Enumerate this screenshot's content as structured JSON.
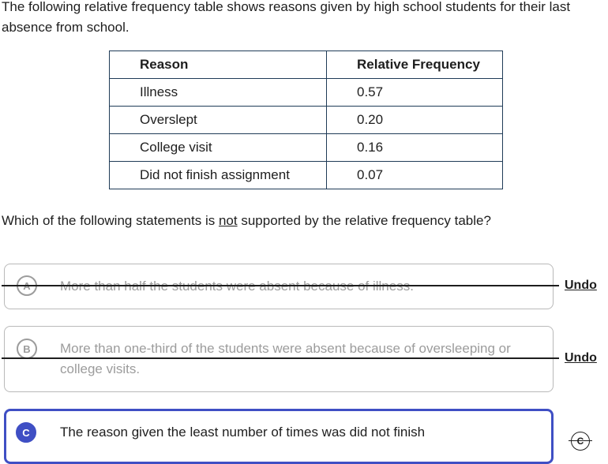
{
  "prompt": "The following relative frequency table shows reasons given by high school students for their last absence from school.",
  "table": {
    "headers": [
      "Reason",
      "Relative Frequency"
    ],
    "rows": [
      [
        "Illness",
        "0.57"
      ],
      [
        "Overslept",
        "0.20"
      ],
      [
        "College visit",
        "0.16"
      ],
      [
        "Did not finish assignment",
        "0.07"
      ]
    ]
  },
  "question": {
    "before": "Which of the following statements is ",
    "emphasis": "not",
    "after": " supported by the relative frequency table?"
  },
  "choices": [
    {
      "letter": "A",
      "text": "More than half the students were absent because of illness.",
      "state": "eliminated",
      "undo_label": "Undo"
    },
    {
      "letter": "B",
      "text": "More than one-third of the students were absent because of oversleeping or college visits.",
      "state": "eliminated",
      "undo_label": "Undo"
    },
    {
      "letter": "C",
      "text": "The reason given the least number of times was did not finish",
      "state": "selected",
      "toggle_label": "C"
    }
  ],
  "colors": {
    "accent": "#3f4fc4",
    "text": "#1e1e1e",
    "muted": "#9c9c9c",
    "table_border": "#1f3b57"
  }
}
